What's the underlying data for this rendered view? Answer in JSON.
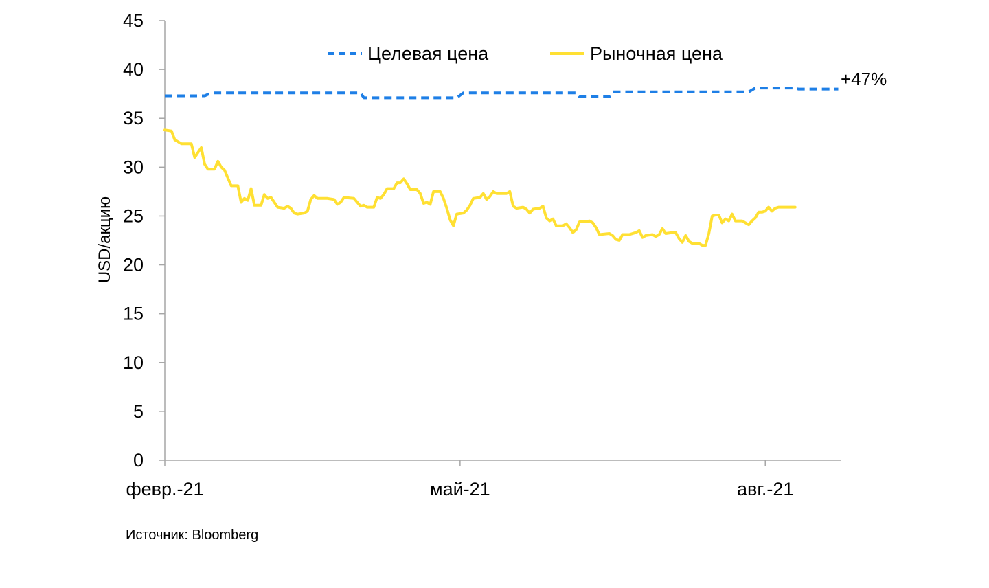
{
  "chart_data": {
    "type": "line",
    "ylabel": "USD/акцию",
    "ylim": [
      0,
      45
    ],
    "yticks": [
      0,
      5,
      10,
      15,
      20,
      25,
      30,
      35,
      40,
      45
    ],
    "xlim": [
      "2021-02-01",
      "2021-08-31"
    ],
    "xticks": [
      {
        "date": "2021-02-01",
        "label": "февр.-21"
      },
      {
        "date": "2021-05-01",
        "label": "май-21"
      },
      {
        "date": "2021-08-01",
        "label": "авг.-21"
      }
    ],
    "legend": "top-center",
    "grid": false,
    "annotation": "+47%",
    "series": [
      {
        "name": "Целевая цена",
        "color": "#1E7FE6",
        "style": "dashed",
        "points": [
          [
            "2021-02-01",
            37.3
          ],
          [
            "2021-02-13",
            37.3
          ],
          [
            "2021-02-15",
            37.6
          ],
          [
            "2021-04-01",
            37.6
          ],
          [
            "2021-04-02",
            37.1
          ],
          [
            "2021-04-30",
            37.1
          ],
          [
            "2021-05-02",
            37.6
          ],
          [
            "2021-06-05",
            37.6
          ],
          [
            "2021-06-06",
            37.2
          ],
          [
            "2021-06-15",
            37.2
          ],
          [
            "2021-06-16",
            37.7
          ],
          [
            "2021-07-27",
            37.7
          ],
          [
            "2021-07-29",
            38.1
          ],
          [
            "2021-08-10",
            38.1
          ],
          [
            "2021-08-11",
            38.0
          ],
          [
            "2021-08-23",
            38.0
          ]
        ]
      },
      {
        "name": "Рыночная цена",
        "color": "#FFE033",
        "style": "solid",
        "points": [
          [
            "2021-02-01",
            33.8
          ],
          [
            "2021-02-03",
            33.7
          ],
          [
            "2021-02-04",
            32.8
          ],
          [
            "2021-02-06",
            32.4
          ],
          [
            "2021-02-09",
            32.4
          ],
          [
            "2021-02-10",
            31.0
          ],
          [
            "2021-02-12",
            32.0
          ],
          [
            "2021-02-13",
            30.3
          ],
          [
            "2021-02-14",
            29.8
          ],
          [
            "2021-02-16",
            29.8
          ],
          [
            "2021-02-17",
            30.6
          ],
          [
            "2021-02-18",
            30.0
          ],
          [
            "2021-02-19",
            29.7
          ],
          [
            "2021-02-21",
            28.1
          ],
          [
            "2021-02-23",
            28.1
          ],
          [
            "2021-02-24",
            26.4
          ],
          [
            "2021-02-25",
            26.8
          ],
          [
            "2021-02-26",
            26.6
          ],
          [
            "2021-02-27",
            27.8
          ],
          [
            "2021-02-28",
            26.1
          ],
          [
            "2021-03-02",
            26.1
          ],
          [
            "2021-03-03",
            27.2
          ],
          [
            "2021-03-04",
            26.8
          ],
          [
            "2021-03-05",
            26.9
          ],
          [
            "2021-03-07",
            25.9
          ],
          [
            "2021-03-09",
            25.8
          ],
          [
            "2021-03-10",
            26.0
          ],
          [
            "2021-03-11",
            25.8
          ],
          [
            "2021-03-12",
            25.3
          ],
          [
            "2021-03-13",
            25.2
          ],
          [
            "2021-03-15",
            25.3
          ],
          [
            "2021-03-16",
            25.5
          ],
          [
            "2021-03-17",
            26.7
          ],
          [
            "2021-03-18",
            27.1
          ],
          [
            "2021-03-19",
            26.8
          ],
          [
            "2021-03-22",
            26.8
          ],
          [
            "2021-03-24",
            26.7
          ],
          [
            "2021-03-25",
            26.2
          ],
          [
            "2021-03-26",
            26.4
          ],
          [
            "2021-03-27",
            26.9
          ],
          [
            "2021-03-30",
            26.8
          ],
          [
            "2021-03-31",
            26.4
          ],
          [
            "2021-04-01",
            26.0
          ],
          [
            "2021-04-02",
            26.1
          ],
          [
            "2021-04-03",
            25.9
          ],
          [
            "2021-04-05",
            25.9
          ],
          [
            "2021-04-06",
            26.9
          ],
          [
            "2021-04-07",
            26.8
          ],
          [
            "2021-04-08",
            27.2
          ],
          [
            "2021-04-09",
            27.8
          ],
          [
            "2021-04-11",
            27.8
          ],
          [
            "2021-04-12",
            28.4
          ],
          [
            "2021-04-13",
            28.4
          ],
          [
            "2021-04-14",
            28.8
          ],
          [
            "2021-04-15",
            28.3
          ],
          [
            "2021-04-16",
            27.7
          ],
          [
            "2021-04-18",
            27.7
          ],
          [
            "2021-04-19",
            27.3
          ],
          [
            "2021-04-20",
            26.3
          ],
          [
            "2021-04-21",
            26.4
          ],
          [
            "2021-04-22",
            26.2
          ],
          [
            "2021-04-23",
            27.5
          ],
          [
            "2021-04-25",
            27.5
          ],
          [
            "2021-04-26",
            26.8
          ],
          [
            "2021-04-27",
            25.8
          ],
          [
            "2021-04-28",
            24.6
          ],
          [
            "2021-04-29",
            24.0
          ],
          [
            "2021-04-30",
            25.2
          ],
          [
            "2021-05-02",
            25.3
          ],
          [
            "2021-05-03",
            25.6
          ],
          [
            "2021-05-04",
            26.1
          ],
          [
            "2021-05-05",
            26.8
          ],
          [
            "2021-05-07",
            26.9
          ],
          [
            "2021-05-08",
            27.3
          ],
          [
            "2021-05-09",
            26.7
          ],
          [
            "2021-05-10",
            27.0
          ],
          [
            "2021-05-11",
            27.5
          ],
          [
            "2021-05-12",
            27.3
          ],
          [
            "2021-05-15",
            27.3
          ],
          [
            "2021-05-16",
            27.5
          ],
          [
            "2021-05-17",
            26.0
          ],
          [
            "2021-05-18",
            25.8
          ],
          [
            "2021-05-20",
            25.9
          ],
          [
            "2021-05-21",
            25.7
          ],
          [
            "2021-05-22",
            25.3
          ],
          [
            "2021-05-23",
            25.7
          ],
          [
            "2021-05-25",
            25.8
          ],
          [
            "2021-05-26",
            26.0
          ],
          [
            "2021-05-27",
            24.8
          ],
          [
            "2021-05-28",
            24.5
          ],
          [
            "2021-05-29",
            24.7
          ],
          [
            "2021-05-30",
            24.0
          ],
          [
            "2021-06-01",
            24.0
          ],
          [
            "2021-06-02",
            24.2
          ],
          [
            "2021-06-03",
            23.8
          ],
          [
            "2021-06-04",
            23.3
          ],
          [
            "2021-06-05",
            23.6
          ],
          [
            "2021-06-06",
            24.4
          ],
          [
            "2021-06-08",
            24.4
          ],
          [
            "2021-06-09",
            24.5
          ],
          [
            "2021-06-10",
            24.3
          ],
          [
            "2021-06-11",
            23.8
          ],
          [
            "2021-06-12",
            23.1
          ],
          [
            "2021-06-15",
            23.2
          ],
          [
            "2021-06-16",
            23.0
          ],
          [
            "2021-06-17",
            22.6
          ],
          [
            "2021-06-18",
            22.5
          ],
          [
            "2021-06-19",
            23.1
          ],
          [
            "2021-06-21",
            23.1
          ],
          [
            "2021-06-23",
            23.3
          ],
          [
            "2021-06-24",
            23.5
          ],
          [
            "2021-06-25",
            22.8
          ],
          [
            "2021-06-26",
            23.0
          ],
          [
            "2021-06-28",
            23.1
          ],
          [
            "2021-06-29",
            22.9
          ],
          [
            "2021-06-30",
            23.1
          ],
          [
            "2021-07-01",
            23.7
          ],
          [
            "2021-07-02",
            23.2
          ],
          [
            "2021-07-04",
            23.3
          ],
          [
            "2021-07-05",
            23.3
          ],
          [
            "2021-07-06",
            22.7
          ],
          [
            "2021-07-07",
            22.3
          ],
          [
            "2021-07-08",
            23.0
          ],
          [
            "2021-07-09",
            22.4
          ],
          [
            "2021-07-10",
            22.2
          ],
          [
            "2021-07-12",
            22.2
          ],
          [
            "2021-07-13",
            22.0
          ],
          [
            "2021-07-14",
            22.0
          ],
          [
            "2021-07-15",
            23.2
          ],
          [
            "2021-07-16",
            25.0
          ],
          [
            "2021-07-17",
            25.1
          ],
          [
            "2021-07-18",
            25.1
          ],
          [
            "2021-07-19",
            24.3
          ],
          [
            "2021-07-20",
            24.7
          ],
          [
            "2021-07-21",
            24.5
          ],
          [
            "2021-07-22",
            25.2
          ],
          [
            "2021-07-23",
            24.5
          ],
          [
            "2021-07-25",
            24.5
          ],
          [
            "2021-07-26",
            24.3
          ],
          [
            "2021-07-27",
            24.1
          ],
          [
            "2021-07-28",
            24.5
          ],
          [
            "2021-07-29",
            24.8
          ],
          [
            "2021-07-30",
            25.4
          ],
          [
            "2021-07-31",
            25.4
          ],
          [
            "2021-08-01",
            25.5
          ],
          [
            "2021-08-02",
            25.9
          ],
          [
            "2021-08-03",
            25.5
          ],
          [
            "2021-08-04",
            25.8
          ],
          [
            "2021-08-05",
            25.9
          ],
          [
            "2021-08-08",
            25.9
          ],
          [
            "2021-08-10",
            25.9
          ]
        ]
      }
    ]
  },
  "source": "Источник: Bloomberg"
}
